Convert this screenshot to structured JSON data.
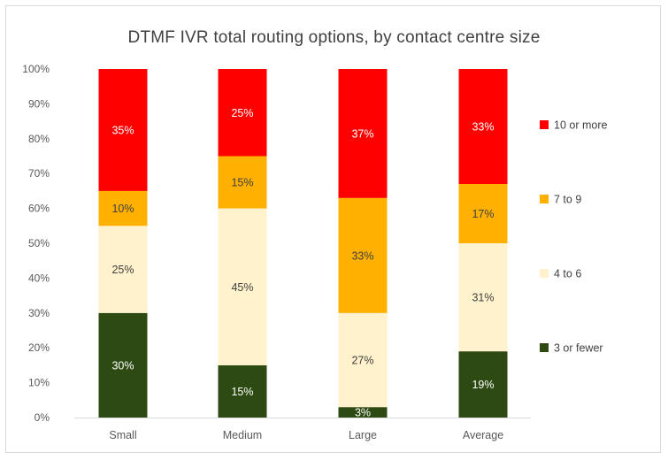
{
  "chart_data": {
    "type": "bar",
    "stacked": true,
    "title": "DTMF IVR total routing options, by contact centre size",
    "categories": [
      "Small",
      "Medium",
      "Large",
      "Average"
    ],
    "series": [
      {
        "name": "3 or fewer",
        "color": "#2d4a12",
        "label_color": "#ffffff",
        "values": [
          30,
          15,
          3,
          19
        ],
        "labels": [
          "30%",
          "15%",
          "3%",
          "19%"
        ]
      },
      {
        "name": "4 to 6",
        "color": "#fff2cc",
        "label_color": "#404040",
        "values": [
          25,
          45,
          27,
          31
        ],
        "labels": [
          "25%",
          "45%",
          "27%",
          "31%"
        ]
      },
      {
        "name": "7 to 9",
        "color": "#ffb000",
        "label_color": "#404040",
        "values": [
          10,
          15,
          33,
          17
        ],
        "labels": [
          "10%",
          "15%",
          "33%",
          "17%"
        ]
      },
      {
        "name": "10 or more",
        "color": "#ff0000",
        "label_color": "#ffffff",
        "values": [
          35,
          25,
          37,
          33
        ],
        "labels": [
          "35%",
          "25%",
          "37%",
          "33%"
        ]
      }
    ],
    "y_ticks": [
      "0%",
      "10%",
      "20%",
      "30%",
      "40%",
      "50%",
      "60%",
      "70%",
      "80%",
      "90%",
      "100%"
    ],
    "ylim": [
      0,
      100
    ],
    "xlabel": "",
    "ylabel": "",
    "grid": false,
    "legend_position": "right"
  }
}
